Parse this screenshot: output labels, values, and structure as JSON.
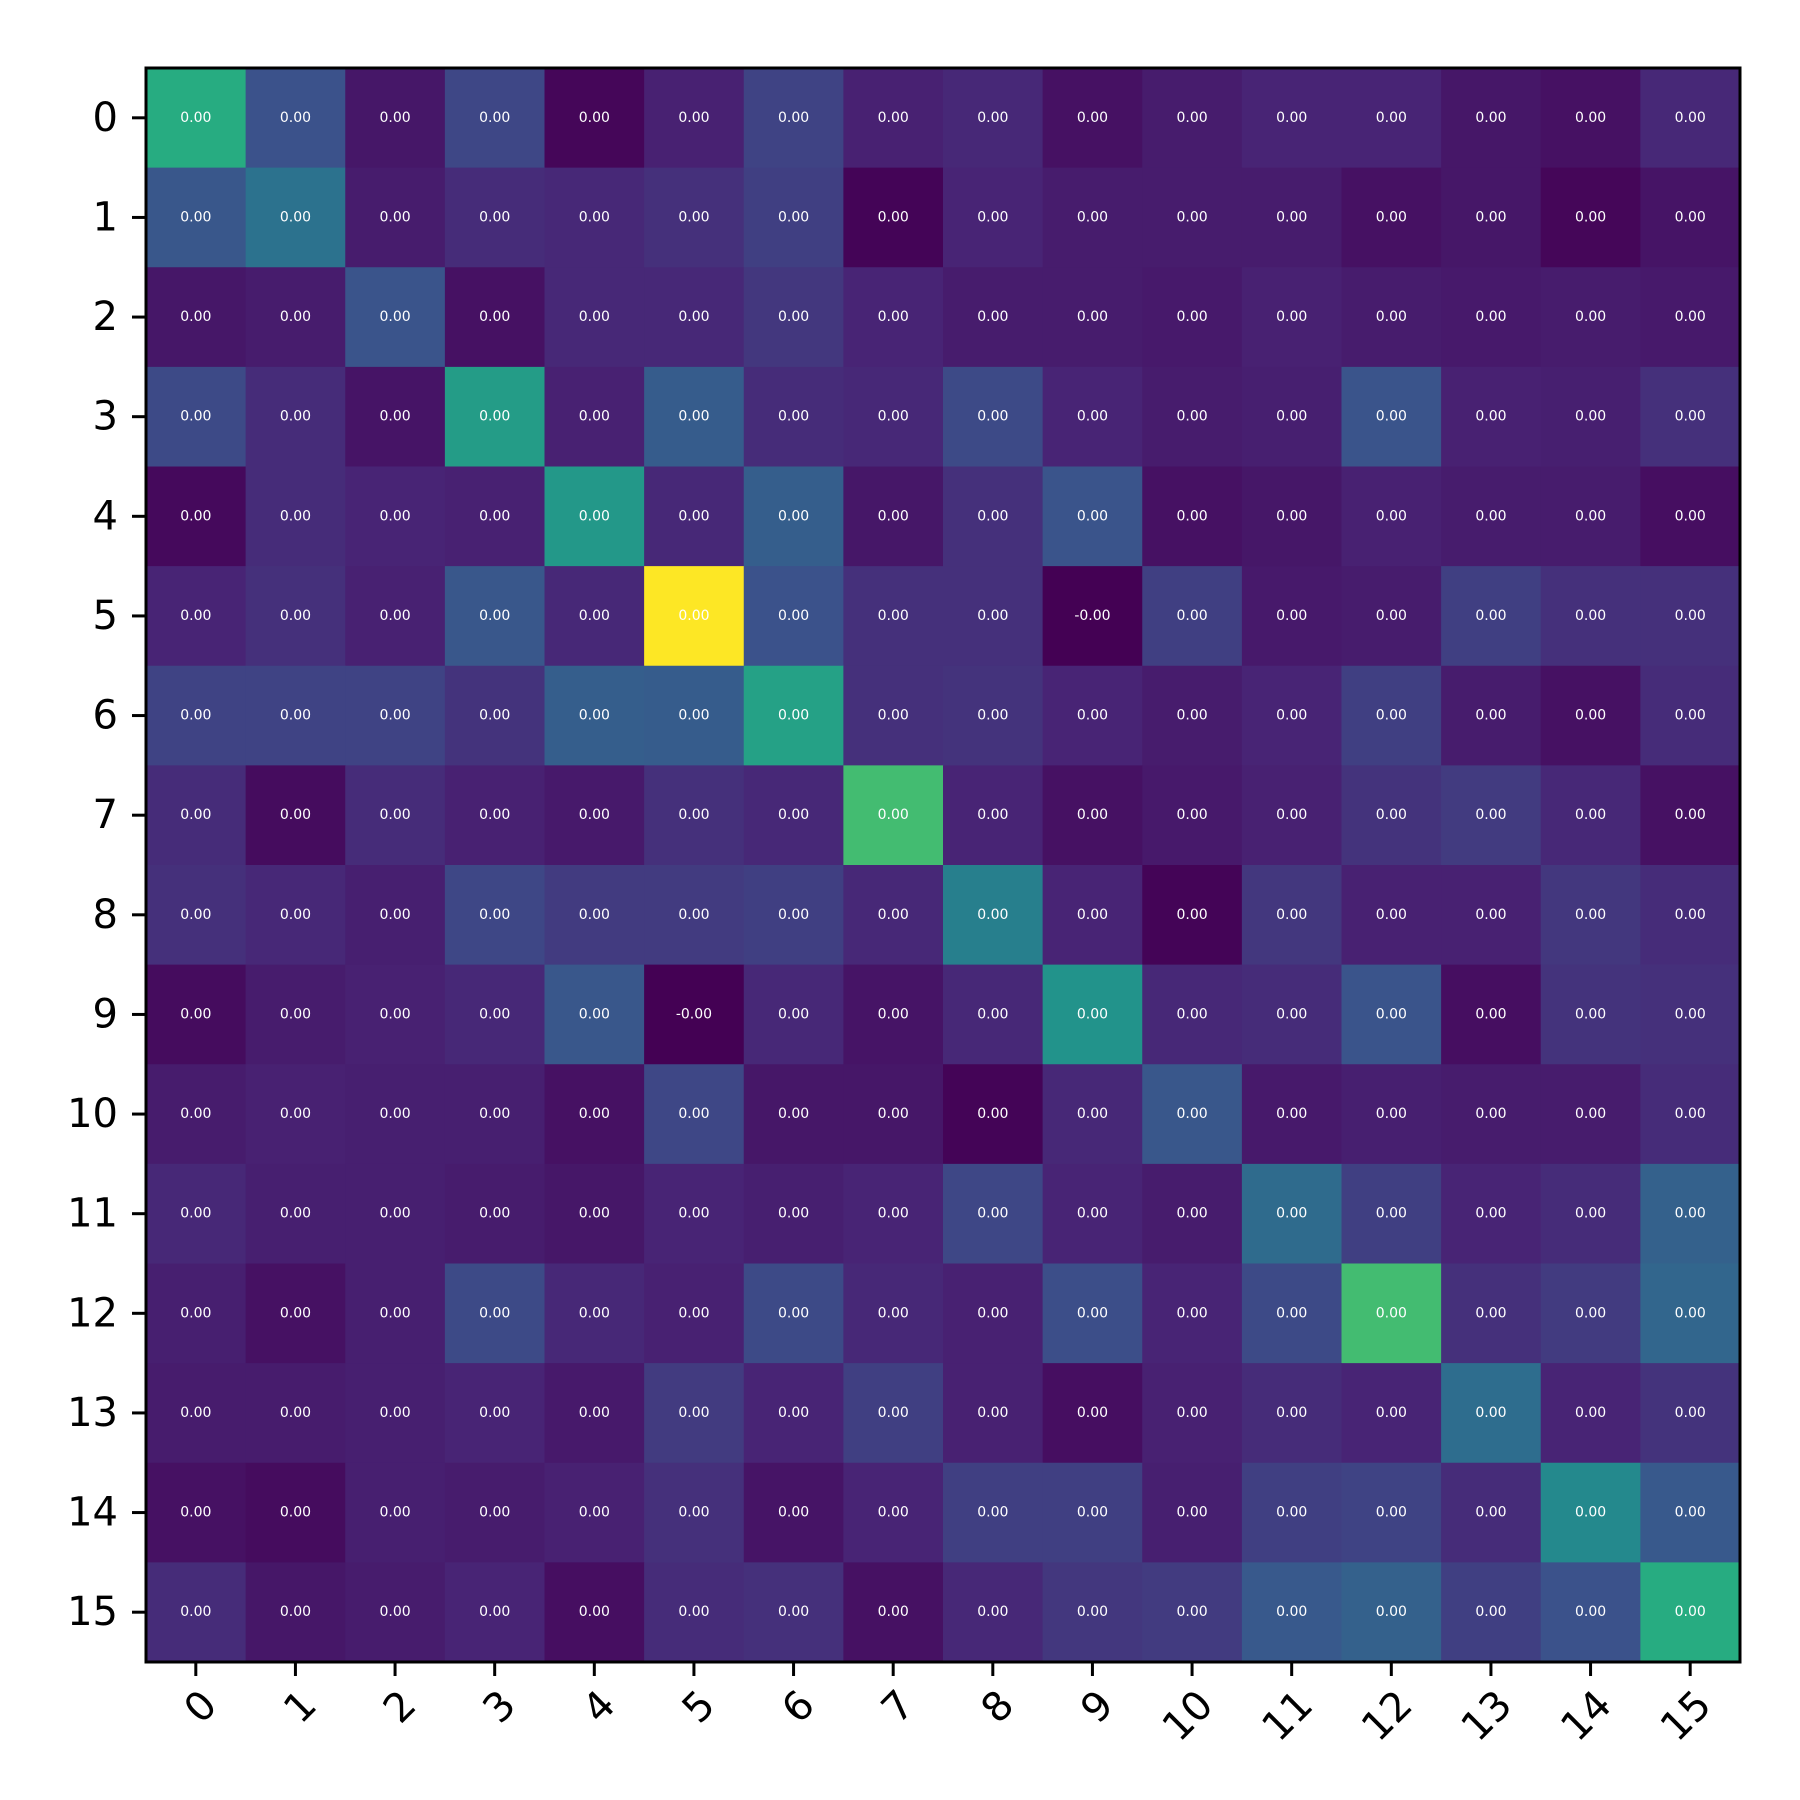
{
  "chart_data": {
    "type": "heatmap",
    "title": "",
    "xlabel": "",
    "ylabel": "",
    "x_categories": [
      "0",
      "1",
      "2",
      "3",
      "4",
      "5",
      "6",
      "7",
      "8",
      "9",
      "10",
      "11",
      "12",
      "13",
      "14",
      "15"
    ],
    "y_categories": [
      "0",
      "1",
      "2",
      "3",
      "4",
      "5",
      "6",
      "7",
      "8",
      "9",
      "10",
      "11",
      "12",
      "13",
      "14",
      "15"
    ],
    "colormap": "viridis",
    "color_level_range": [
      0,
      1
    ],
    "cell_label_note": "every cell prints a two-decimal value; values are shown here as color levels 0..1",
    "cell_labels": [
      [
        "0.00",
        "0.00",
        "0.00",
        "0.00",
        "0.00",
        "0.00",
        "0.00",
        "0.00",
        "0.00",
        "0.00",
        "0.00",
        "0.00",
        "0.00",
        "0.00",
        "0.00",
        "0.00"
      ],
      [
        "0.00",
        "0.00",
        "0.00",
        "0.00",
        "0.00",
        "0.00",
        "0.00",
        "0.00",
        "0.00",
        "0.00",
        "0.00",
        "0.00",
        "0.00",
        "0.00",
        "0.00",
        "0.00"
      ],
      [
        "0.00",
        "0.00",
        "0.00",
        "0.00",
        "0.00",
        "0.00",
        "0.00",
        "0.00",
        "0.00",
        "0.00",
        "0.00",
        "0.00",
        "0.00",
        "0.00",
        "0.00",
        "0.00"
      ],
      [
        "0.00",
        "0.00",
        "0.00",
        "0.00",
        "0.00",
        "0.00",
        "0.00",
        "0.00",
        "0.00",
        "0.00",
        "0.00",
        "0.00",
        "0.00",
        "0.00",
        "0.00",
        "0.00"
      ],
      [
        "0.00",
        "0.00",
        "0.00",
        "0.00",
        "0.00",
        "0.00",
        "0.00",
        "0.00",
        "0.00",
        "0.00",
        "0.00",
        "0.00",
        "0.00",
        "0.00",
        "0.00",
        "0.00"
      ],
      [
        "0.00",
        "0.00",
        "0.00",
        "0.00",
        "0.00",
        "0.00",
        "0.00",
        "0.00",
        "0.00",
        "-0.00",
        "0.00",
        "0.00",
        "0.00",
        "0.00",
        "0.00",
        "0.00"
      ],
      [
        "0.00",
        "0.00",
        "0.00",
        "0.00",
        "0.00",
        "0.00",
        "0.00",
        "0.00",
        "0.00",
        "0.00",
        "0.00",
        "0.00",
        "0.00",
        "0.00",
        "0.00",
        "0.00"
      ],
      [
        "0.00",
        "0.00",
        "0.00",
        "0.00",
        "0.00",
        "0.00",
        "0.00",
        "0.00",
        "0.00",
        "0.00",
        "0.00",
        "0.00",
        "0.00",
        "0.00",
        "0.00",
        "0.00"
      ],
      [
        "0.00",
        "0.00",
        "0.00",
        "0.00",
        "0.00",
        "0.00",
        "0.00",
        "0.00",
        "0.00",
        "0.00",
        "0.00",
        "0.00",
        "0.00",
        "0.00",
        "0.00",
        "0.00"
      ],
      [
        "0.00",
        "0.00",
        "0.00",
        "0.00",
        "0.00",
        "-0.00",
        "0.00",
        "0.00",
        "0.00",
        "0.00",
        "0.00",
        "0.00",
        "0.00",
        "0.00",
        "0.00",
        "0.00"
      ],
      [
        "0.00",
        "0.00",
        "0.00",
        "0.00",
        "0.00",
        "0.00",
        "0.00",
        "0.00",
        "0.00",
        "0.00",
        "0.00",
        "0.00",
        "0.00",
        "0.00",
        "0.00",
        "0.00"
      ],
      [
        "0.00",
        "0.00",
        "0.00",
        "0.00",
        "0.00",
        "0.00",
        "0.00",
        "0.00",
        "0.00",
        "0.00",
        "0.00",
        "0.00",
        "0.00",
        "0.00",
        "0.00",
        "0.00"
      ],
      [
        "0.00",
        "0.00",
        "0.00",
        "0.00",
        "0.00",
        "0.00",
        "0.00",
        "0.00",
        "0.00",
        "0.00",
        "0.00",
        "0.00",
        "0.00",
        "0.00",
        "0.00",
        "0.00"
      ],
      [
        "0.00",
        "0.00",
        "0.00",
        "0.00",
        "0.00",
        "0.00",
        "0.00",
        "0.00",
        "0.00",
        "0.00",
        "0.00",
        "0.00",
        "0.00",
        "0.00",
        "0.00",
        "0.00"
      ],
      [
        "0.00",
        "0.00",
        "0.00",
        "0.00",
        "0.00",
        "0.00",
        "0.00",
        "0.00",
        "0.00",
        "0.00",
        "0.00",
        "0.00",
        "0.00",
        "0.00",
        "0.00",
        "0.00"
      ],
      [
        "0.00",
        "0.00",
        "0.00",
        "0.00",
        "0.00",
        "0.00",
        "0.00",
        "0.00",
        "0.00",
        "0.00",
        "0.00",
        "0.00",
        "0.00",
        "0.00",
        "0.00",
        "0.00"
      ]
    ],
    "color_levels": [
      [
        0.62,
        0.25,
        0.08,
        0.22,
        0.02,
        0.12,
        0.21,
        0.12,
        0.14,
        0.06,
        0.1,
        0.13,
        0.13,
        0.08,
        0.06,
        0.14
      ],
      [
        0.27,
        0.38,
        0.1,
        0.15,
        0.14,
        0.16,
        0.2,
        0.01,
        0.13,
        0.1,
        0.1,
        0.1,
        0.06,
        0.08,
        0.02,
        0.07
      ],
      [
        0.08,
        0.1,
        0.26,
        0.06,
        0.14,
        0.14,
        0.18,
        0.13,
        0.1,
        0.1,
        0.09,
        0.12,
        0.1,
        0.09,
        0.1,
        0.09
      ],
      [
        0.23,
        0.15,
        0.07,
        0.55,
        0.12,
        0.29,
        0.15,
        0.14,
        0.23,
        0.13,
        0.1,
        0.11,
        0.26,
        0.12,
        0.11,
        0.16
      ],
      [
        0.03,
        0.15,
        0.13,
        0.12,
        0.53,
        0.14,
        0.3,
        0.08,
        0.16,
        0.26,
        0.06,
        0.08,
        0.12,
        0.1,
        0.1,
        0.05
      ],
      [
        0.13,
        0.16,
        0.12,
        0.27,
        0.14,
        1.0,
        0.25,
        0.16,
        0.16,
        0.0,
        0.2,
        0.09,
        0.1,
        0.2,
        0.16,
        0.16
      ],
      [
        0.21,
        0.21,
        0.21,
        0.17,
        0.3,
        0.29,
        0.57,
        0.16,
        0.17,
        0.13,
        0.1,
        0.13,
        0.2,
        0.1,
        0.06,
        0.15
      ],
      [
        0.15,
        0.04,
        0.15,
        0.12,
        0.09,
        0.16,
        0.14,
        0.69,
        0.13,
        0.06,
        0.09,
        0.12,
        0.17,
        0.19,
        0.14,
        0.06
      ],
      [
        0.16,
        0.14,
        0.11,
        0.22,
        0.19,
        0.19,
        0.2,
        0.14,
        0.43,
        0.13,
        0.01,
        0.18,
        0.12,
        0.12,
        0.18,
        0.15
      ],
      [
        0.04,
        0.1,
        0.12,
        0.14,
        0.27,
        0.0,
        0.14,
        0.07,
        0.14,
        0.51,
        0.14,
        0.15,
        0.26,
        0.05,
        0.17,
        0.16
      ],
      [
        0.1,
        0.12,
        0.11,
        0.11,
        0.06,
        0.22,
        0.08,
        0.08,
        0.01,
        0.14,
        0.27,
        0.09,
        0.11,
        0.1,
        0.1,
        0.15
      ],
      [
        0.14,
        0.11,
        0.11,
        0.1,
        0.08,
        0.13,
        0.11,
        0.13,
        0.22,
        0.13,
        0.1,
        0.35,
        0.2,
        0.13,
        0.15,
        0.31
      ],
      [
        0.11,
        0.06,
        0.11,
        0.23,
        0.14,
        0.12,
        0.23,
        0.14,
        0.12,
        0.24,
        0.13,
        0.23,
        0.69,
        0.16,
        0.19,
        0.33
      ],
      [
        0.1,
        0.1,
        0.11,
        0.13,
        0.09,
        0.19,
        0.13,
        0.2,
        0.12,
        0.05,
        0.12,
        0.15,
        0.13,
        0.36,
        0.13,
        0.17
      ],
      [
        0.06,
        0.04,
        0.11,
        0.1,
        0.12,
        0.16,
        0.07,
        0.13,
        0.2,
        0.2,
        0.11,
        0.2,
        0.21,
        0.15,
        0.47,
        0.28
      ],
      [
        0.15,
        0.08,
        0.1,
        0.13,
        0.05,
        0.15,
        0.16,
        0.06,
        0.14,
        0.18,
        0.19,
        0.28,
        0.31,
        0.2,
        0.25,
        0.62
      ]
    ]
  }
}
